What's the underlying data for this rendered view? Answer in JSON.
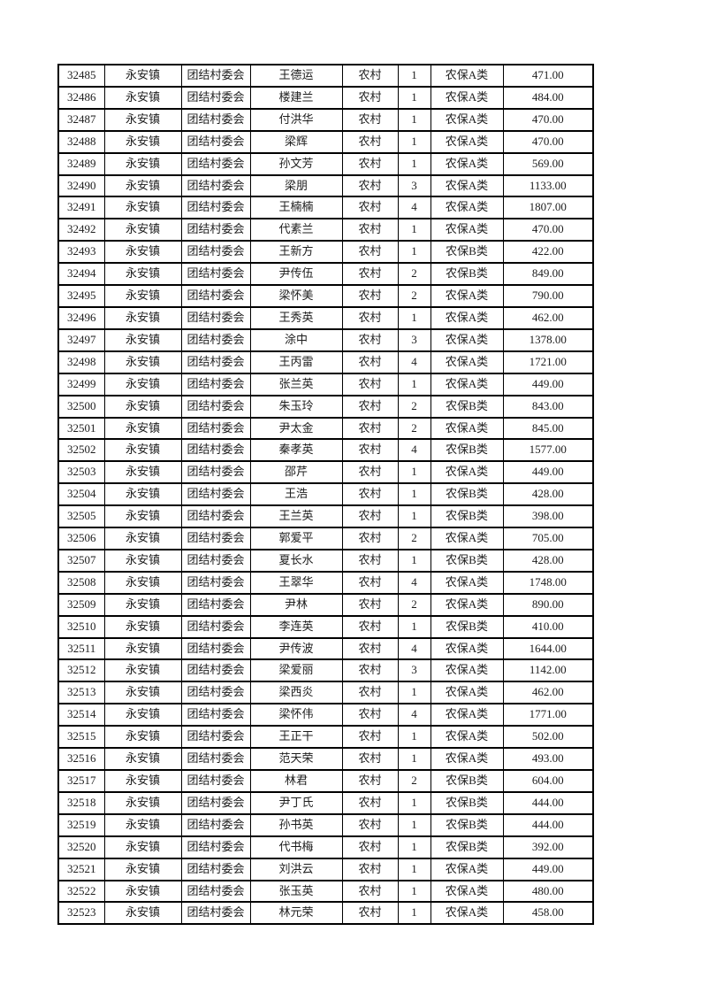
{
  "colors": {
    "page_background": "#ffffff",
    "table_border": "#000000",
    "text": "#1d1d1d"
  },
  "table": {
    "rows": [
      [
        "32485",
        "永安镇",
        "团结村委会",
        "王德运",
        "农村",
        "1",
        "农保A类",
        "471.00"
      ],
      [
        "32486",
        "永安镇",
        "团结村委会",
        "楼建兰",
        "农村",
        "1",
        "农保A类",
        "484.00"
      ],
      [
        "32487",
        "永安镇",
        "团结村委会",
        "付洪华",
        "农村",
        "1",
        "农保A类",
        "470.00"
      ],
      [
        "32488",
        "永安镇",
        "团结村委会",
        "梁辉",
        "农村",
        "1",
        "农保A类",
        "470.00"
      ],
      [
        "32489",
        "永安镇",
        "团结村委会",
        "孙文芳",
        "农村",
        "1",
        "农保A类",
        "569.00"
      ],
      [
        "32490",
        "永安镇",
        "团结村委会",
        "梁朋",
        "农村",
        "3",
        "农保A类",
        "1133.00"
      ],
      [
        "32491",
        "永安镇",
        "团结村委会",
        "王楠楠",
        "农村",
        "4",
        "农保A类",
        "1807.00"
      ],
      [
        "32492",
        "永安镇",
        "团结村委会",
        "代素兰",
        "农村",
        "1",
        "农保A类",
        "470.00"
      ],
      [
        "32493",
        "永安镇",
        "团结村委会",
        "王新方",
        "农村",
        "1",
        "农保B类",
        "422.00"
      ],
      [
        "32494",
        "永安镇",
        "团结村委会",
        "尹传伍",
        "农村",
        "2",
        "农保B类",
        "849.00"
      ],
      [
        "32495",
        "永安镇",
        "团结村委会",
        "梁怀美",
        "农村",
        "2",
        "农保A类",
        "790.00"
      ],
      [
        "32496",
        "永安镇",
        "团结村委会",
        "王秀英",
        "农村",
        "1",
        "农保A类",
        "462.00"
      ],
      [
        "32497",
        "永安镇",
        "团结村委会",
        "涂中",
        "农村",
        "3",
        "农保A类",
        "1378.00"
      ],
      [
        "32498",
        "永安镇",
        "团结村委会",
        "王丙雷",
        "农村",
        "4",
        "农保A类",
        "1721.00"
      ],
      [
        "32499",
        "永安镇",
        "团结村委会",
        "张兰英",
        "农村",
        "1",
        "农保A类",
        "449.00"
      ],
      [
        "32500",
        "永安镇",
        "团结村委会",
        "朱玉玲",
        "农村",
        "2",
        "农保B类",
        "843.00"
      ],
      [
        "32501",
        "永安镇",
        "团结村委会",
        "尹太金",
        "农村",
        "2",
        "农保A类",
        "845.00"
      ],
      [
        "32502",
        "永安镇",
        "团结村委会",
        "秦孝英",
        "农村",
        "4",
        "农保B类",
        "1577.00"
      ],
      [
        "32503",
        "永安镇",
        "团结村委会",
        "邵芹",
        "农村",
        "1",
        "农保A类",
        "449.00"
      ],
      [
        "32504",
        "永安镇",
        "团结村委会",
        "王浩",
        "农村",
        "1",
        "农保B类",
        "428.00"
      ],
      [
        "32505",
        "永安镇",
        "团结村委会",
        "王兰英",
        "农村",
        "1",
        "农保B类",
        "398.00"
      ],
      [
        "32506",
        "永安镇",
        "团结村委会",
        "郭爱平",
        "农村",
        "2",
        "农保A类",
        "705.00"
      ],
      [
        "32507",
        "永安镇",
        "团结村委会",
        "夏长水",
        "农村",
        "1",
        "农保B类",
        "428.00"
      ],
      [
        "32508",
        "永安镇",
        "团结村委会",
        "王翠华",
        "农村",
        "4",
        "农保A类",
        "1748.00"
      ],
      [
        "32509",
        "永安镇",
        "团结村委会",
        "尹林",
        "农村",
        "2",
        "农保A类",
        "890.00"
      ],
      [
        "32510",
        "永安镇",
        "团结村委会",
        "李连英",
        "农村",
        "1",
        "农保B类",
        "410.00"
      ],
      [
        "32511",
        "永安镇",
        "团结村委会",
        "尹传波",
        "农村",
        "4",
        "农保A类",
        "1644.00"
      ],
      [
        "32512",
        "永安镇",
        "团结村委会",
        "梁爱丽",
        "农村",
        "3",
        "农保A类",
        "1142.00"
      ],
      [
        "32513",
        "永安镇",
        "团结村委会",
        "梁西炎",
        "农村",
        "1",
        "农保A类",
        "462.00"
      ],
      [
        "32514",
        "永安镇",
        "团结村委会",
        "梁怀伟",
        "农村",
        "4",
        "农保A类",
        "1771.00"
      ],
      [
        "32515",
        "永安镇",
        "团结村委会",
        "王正干",
        "农村",
        "1",
        "农保A类",
        "502.00"
      ],
      [
        "32516",
        "永安镇",
        "团结村委会",
        "范天荣",
        "农村",
        "1",
        "农保A类",
        "493.00"
      ],
      [
        "32517",
        "永安镇",
        "团结村委会",
        "林君",
        "农村",
        "2",
        "农保B类",
        "604.00"
      ],
      [
        "32518",
        "永安镇",
        "团结村委会",
        "尹丁氏",
        "农村",
        "1",
        "农保B类",
        "444.00"
      ],
      [
        "32519",
        "永安镇",
        "团结村委会",
        "孙书英",
        "农村",
        "1",
        "农保B类",
        "444.00"
      ],
      [
        "32520",
        "永安镇",
        "团结村委会",
        "代书梅",
        "农村",
        "1",
        "农保B类",
        "392.00"
      ],
      [
        "32521",
        "永安镇",
        "团结村委会",
        "刘洪云",
        "农村",
        "1",
        "农保A类",
        "449.00"
      ],
      [
        "32522",
        "永安镇",
        "团结村委会",
        "张玉英",
        "农村",
        "1",
        "农保A类",
        "480.00"
      ],
      [
        "32523",
        "永安镇",
        "团结村委会",
        "林元荣",
        "农村",
        "1",
        "农保A类",
        "458.00"
      ]
    ]
  }
}
